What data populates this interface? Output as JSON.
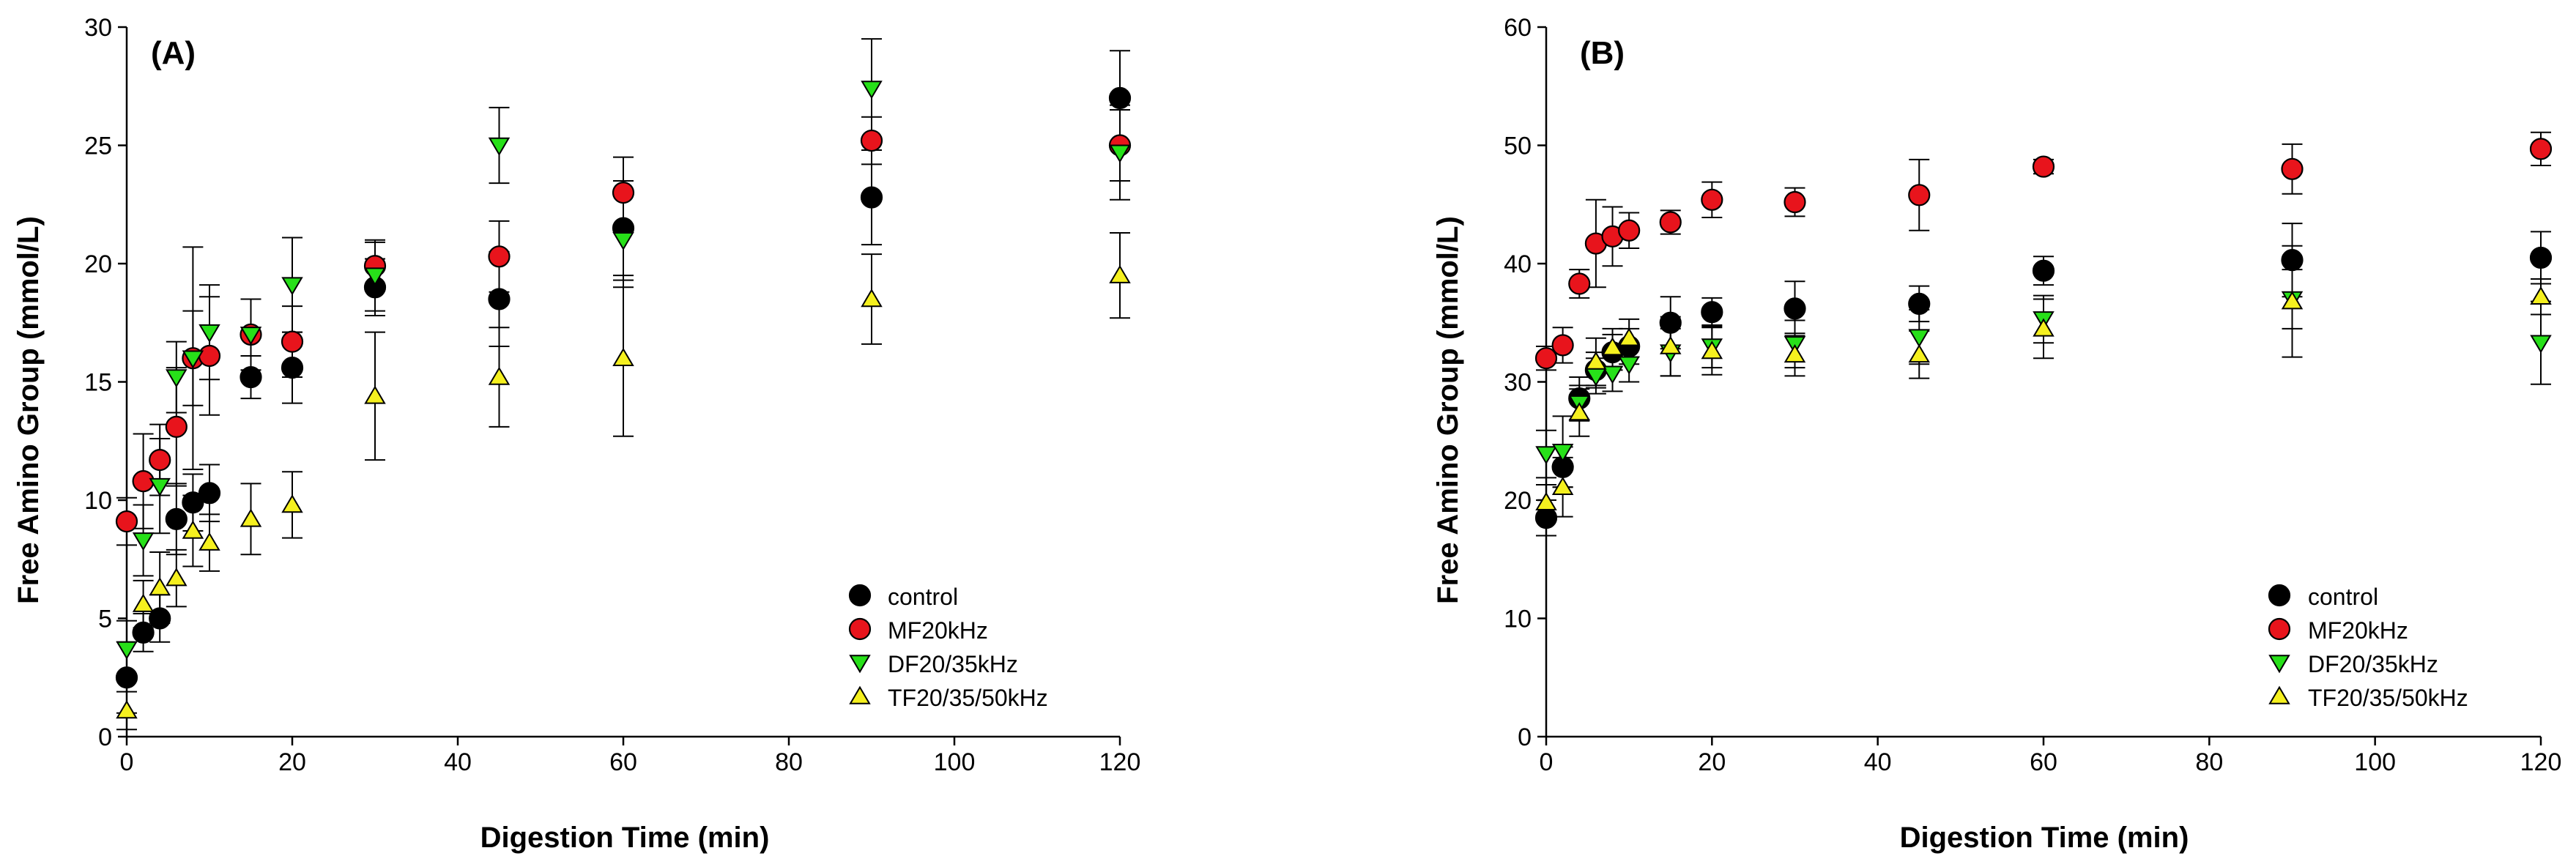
{
  "chart_data": [
    {
      "type": "scatter",
      "panel_label": "(A)",
      "xlabel": "Digestion Time (min)",
      "ylabel": "Free Amino Group (mmol/L)",
      "xlim": [
        0,
        120
      ],
      "ylim": [
        0,
        30
      ],
      "xticks": [
        0,
        20,
        40,
        60,
        80,
        100,
        120
      ],
      "yticks": [
        0,
        5,
        10,
        15,
        20,
        25,
        30
      ],
      "grid": false,
      "legend_position": "bottom-right",
      "series": [
        {
          "name": "control",
          "marker": "circle",
          "color": "#000000",
          "x": [
            0,
            2,
            4,
            6,
            8,
            10,
            15,
            20,
            30,
            45,
            60,
            90,
            120
          ],
          "y": [
            2.5,
            4.4,
            5.0,
            9.2,
            9.9,
            10.3,
            15.2,
            15.6,
            19.0,
            18.5,
            21.5,
            22.8,
            27.0
          ],
          "err": [
            1.5,
            0.8,
            1.0,
            1.5,
            1.2,
            1.2,
            0.9,
            1.5,
            1.2,
            2.0,
            2.0,
            2.0,
            2.0
          ]
        },
        {
          "name": "MF20kHz",
          "marker": "circle",
          "color": "#e8141c",
          "x": [
            0,
            2,
            4,
            6,
            8,
            10,
            15,
            20,
            30,
            45,
            60,
            90,
            120
          ],
          "y": [
            9.1,
            10.8,
            11.7,
            13.1,
            16.0,
            16.1,
            17.0,
            16.7,
            19.9,
            20.3,
            23.0,
            25.2,
            25.0
          ],
          "err": [
            1.0,
            2.0,
            1.5,
            2.5,
            2.0,
            2.5,
            1.5,
            1.5,
            1.0,
            1.5,
            1.5,
            1.0,
            1.5
          ]
        },
        {
          "name": "DF20/35kHz",
          "marker": "triangle-down",
          "color": "#27e019",
          "x": [
            0,
            2,
            4,
            6,
            8,
            10,
            15,
            20,
            30,
            45,
            60,
            90,
            120
          ],
          "y": [
            3.7,
            8.3,
            10.6,
            15.2,
            16.0,
            17.1,
            17.0,
            19.1,
            19.5,
            25.0,
            21.0,
            27.4,
            24.7
          ],
          "err": [
            1.2,
            1.5,
            2.0,
            1.5,
            4.7,
            2.0,
            1.5,
            2.0,
            1.5,
            1.6,
            2.0,
            2.1,
            2.0
          ]
        },
        {
          "name": "TF20/35/50kHz",
          "marker": "triangle-up",
          "color": "#f5f01f",
          "x": [
            0,
            2,
            4,
            6,
            8,
            10,
            15,
            20,
            30,
            45,
            60,
            90,
            120
          ],
          "y": [
            1.1,
            5.6,
            6.3,
            6.7,
            8.7,
            8.2,
            9.2,
            9.8,
            14.4,
            15.2,
            16.0,
            18.5,
            19.5
          ],
          "err": [
            0.8,
            1.0,
            1.5,
            1.2,
            1.5,
            1.2,
            1.5,
            1.4,
            2.7,
            2.1,
            3.3,
            1.9,
            1.8
          ]
        }
      ],
      "legend": [
        "control",
        "MF20kHz",
        "DF20/35kHz",
        "TF20/35/50kHz"
      ]
    },
    {
      "type": "scatter",
      "panel_label": "(B)",
      "xlabel": "Digestion Time (min)",
      "ylabel": "Free Amino Group (mmol/L)",
      "xlim": [
        0,
        120
      ],
      "ylim": [
        0,
        60
      ],
      "xticks": [
        0,
        20,
        40,
        60,
        80,
        100,
        120
      ],
      "yticks": [
        0,
        10,
        20,
        30,
        40,
        50,
        60
      ],
      "grid": false,
      "legend_position": "bottom-right",
      "series": [
        {
          "name": "control",
          "marker": "circle",
          "color": "#000000",
          "x": [
            0,
            2,
            4,
            6,
            8,
            10,
            15,
            20,
            30,
            45,
            60,
            90,
            120
          ],
          "y": [
            18.5,
            22.8,
            28.6,
            31.0,
            32.5,
            33.0,
            35.0,
            35.9,
            36.2,
            36.6,
            39.4,
            40.3,
            40.5
          ],
          "err": [
            1.5,
            1.7,
            1.8,
            1.5,
            1.5,
            1.5,
            2.2,
            1.2,
            2.3,
            1.5,
            1.2,
            3.1,
            2.2
          ]
        },
        {
          "name": "MF20kHz",
          "marker": "circle",
          "color": "#e8141c",
          "x": [
            0,
            2,
            4,
            6,
            8,
            10,
            15,
            20,
            30,
            45,
            60,
            90,
            120
          ],
          "y": [
            32.0,
            33.1,
            38.3,
            41.7,
            42.3,
            42.8,
            43.5,
            45.4,
            45.2,
            45.8,
            48.2,
            48.0,
            49.7
          ],
          "err": [
            1.0,
            1.5,
            1.2,
            3.7,
            2.5,
            1.5,
            1.0,
            1.5,
            1.2,
            3.0,
            0.6,
            2.1,
            1.4
          ]
        },
        {
          "name": "DF20/35kHz",
          "marker": "triangle-down",
          "color": "#27e019",
          "x": [
            0,
            2,
            4,
            6,
            8,
            10,
            15,
            20,
            30,
            45,
            60,
            90,
            120
          ],
          "y": [
            23.9,
            24.1,
            28.2,
            30.5,
            30.7,
            31.5,
            32.5,
            33.0,
            33.2,
            33.8,
            35.3,
            37.0,
            33.3
          ],
          "err": [
            2.0,
            3.0,
            1.5,
            1.5,
            1.5,
            1.5,
            2.0,
            1.8,
            2.0,
            2.3,
            2.0,
            2.5,
            3.5
          ]
        },
        {
          "name": "TF20/35/50kHz",
          "marker": "triangle-up",
          "color": "#f5f01f",
          "x": [
            0,
            2,
            4,
            6,
            8,
            10,
            15,
            20,
            30,
            45,
            60,
            90,
            120
          ],
          "y": [
            19.8,
            21.1,
            27.4,
            31.7,
            32.9,
            33.7,
            33.0,
            32.6,
            32.3,
            32.3,
            34.5,
            36.8,
            37.2
          ],
          "err": [
            1.5,
            2.5,
            2.0,
            2.0,
            1.6,
            1.6,
            2.5,
            2.0,
            1.8,
            2.0,
            2.5,
            4.7,
            1.5
          ]
        }
      ],
      "legend": [
        "control",
        "MF20kHz",
        "DF20/35kHz",
        "TF20/35/50kHz"
      ]
    }
  ]
}
